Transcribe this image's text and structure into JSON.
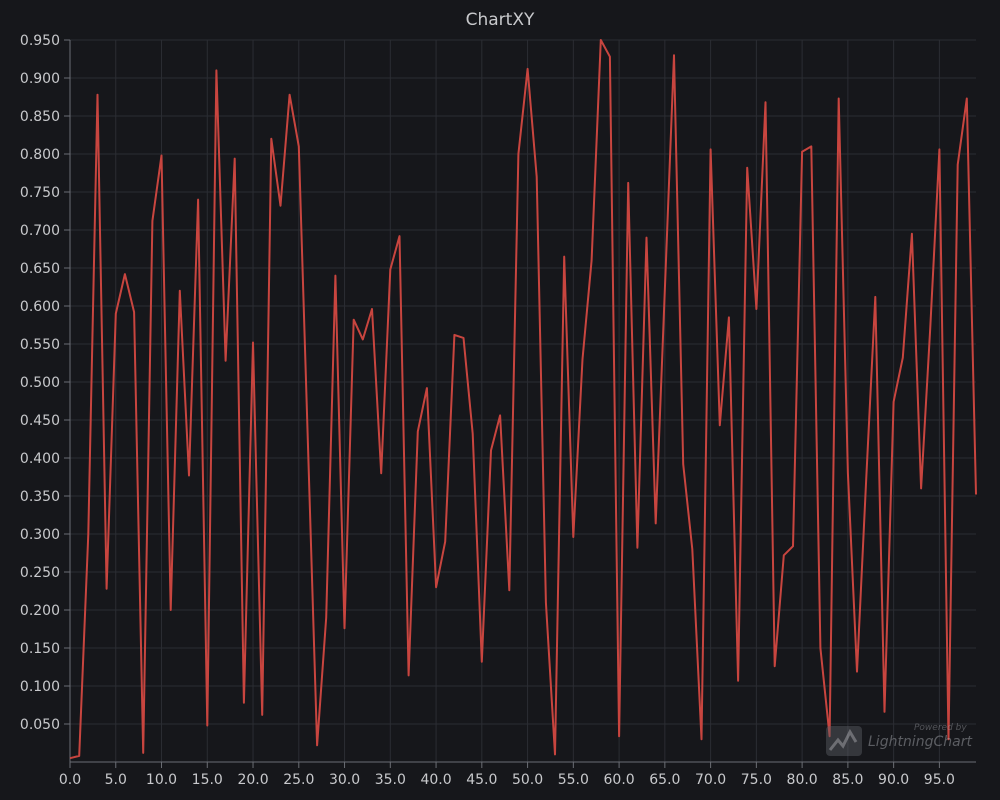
{
  "chart_data": {
    "type": "line",
    "title": "ChartXY",
    "xlabel": "",
    "ylabel": "",
    "xlim": [
      0,
      99
    ],
    "ylim": [
      0,
      0.95
    ],
    "x_ticks": [
      "0.0",
      "5.0",
      "10.0",
      "15.0",
      "20.0",
      "25.0",
      "30.0",
      "35.0",
      "40.0",
      "45.0",
      "50.0",
      "55.0",
      "60.0",
      "65.0",
      "70.0",
      "75.0",
      "80.0",
      "85.0",
      "90.0",
      "95.0"
    ],
    "y_ticks": [
      "0.050",
      "0.100",
      "0.150",
      "0.200",
      "0.250",
      "0.300",
      "0.350",
      "0.400",
      "0.450",
      "0.500",
      "0.550",
      "0.600",
      "0.650",
      "0.700",
      "0.750",
      "0.800",
      "0.850",
      "0.900",
      "0.950"
    ],
    "grid": true,
    "series": [
      {
        "color": "#c8453f",
        "x": [
          0,
          1,
          2,
          3,
          4,
          5,
          6,
          7,
          8,
          9,
          10,
          11,
          12,
          13,
          14,
          15,
          16,
          17,
          18,
          19,
          20,
          21,
          22,
          23,
          24,
          25,
          26,
          27,
          28,
          29,
          30,
          31,
          32,
          33,
          34,
          35,
          36,
          37,
          38,
          39,
          40,
          41,
          42,
          43,
          44,
          45,
          46,
          47,
          48,
          49,
          50,
          51,
          52,
          53,
          54,
          55,
          56,
          57,
          58,
          59,
          60,
          61,
          62,
          63,
          64,
          65,
          66,
          67,
          68,
          69,
          70,
          71,
          72,
          73,
          74,
          75,
          76,
          77,
          78,
          79,
          80,
          81,
          82,
          83,
          84,
          85,
          86,
          87,
          88,
          89,
          90,
          91,
          92,
          93,
          94,
          95,
          96,
          97,
          98,
          99
        ],
        "y": [
          0.005,
          0.008,
          0.3,
          0.878,
          0.228,
          0.59,
          0.642,
          0.592,
          0.012,
          0.712,
          0.798,
          0.2,
          0.62,
          0.377,
          0.74,
          0.048,
          0.91,
          0.528,
          0.794,
          0.078,
          0.552,
          0.062,
          0.82,
          0.732,
          0.878,
          0.81,
          0.42,
          0.022,
          0.19,
          0.64,
          0.176,
          0.582,
          0.556,
          0.596,
          0.38,
          0.648,
          0.692,
          0.114,
          0.435,
          0.492,
          0.23,
          0.29,
          0.562,
          0.558,
          0.432,
          0.132,
          0.41,
          0.456,
          0.226,
          0.8,
          0.912,
          0.77,
          0.21,
          0.01,
          0.665,
          0.296,
          0.53,
          0.66,
          0.95,
          0.928,
          0.034,
          0.762,
          0.282,
          0.69,
          0.314,
          0.62,
          0.93,
          0.392,
          0.28,
          0.03,
          0.806,
          0.443,
          0.585,
          0.107,
          0.782,
          0.596,
          0.868,
          0.126,
          0.272,
          0.284,
          0.803,
          0.81,
          0.15,
          0.034,
          0.873,
          0.38,
          0.119,
          0.372,
          0.612,
          0.066,
          0.474,
          0.532,
          0.695,
          0.36,
          0.57,
          0.806,
          0.03,
          0.786,
          0.873,
          0.352
        ]
      }
    ]
  },
  "watermark": {
    "powered_by": "Powered by",
    "brand": "LightningChart"
  }
}
